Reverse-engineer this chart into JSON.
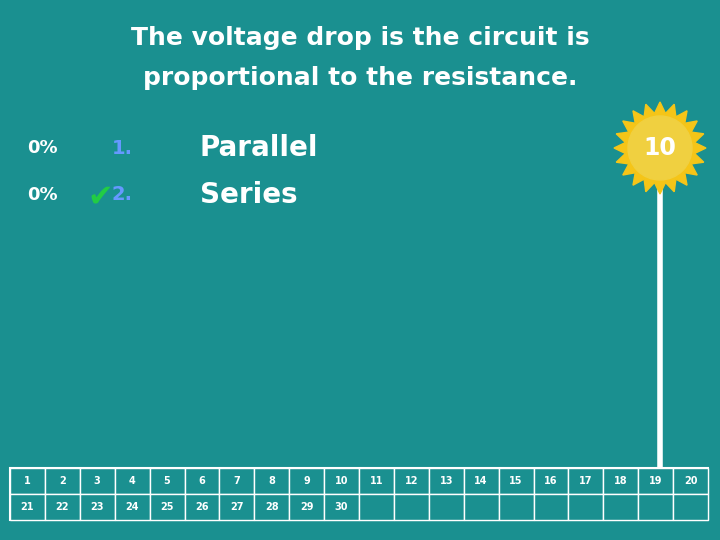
{
  "title_line1": "The voltage drop is the circuit is",
  "title_line2": "proportional to the resistance.",
  "bg_color": "#1a9090",
  "text_color": "#ffffff",
  "options": [
    {
      "number": "1.",
      "text": "Parallel",
      "has_check": false
    },
    {
      "number": "2.",
      "text": "Series",
      "has_check": true
    }
  ],
  "pct_label": "0%",
  "badge_number": "10",
  "badge_color_outer": "#f5c518",
  "badge_color_inner": "#f0d040",
  "stem_color": "#ffffff",
  "grid_rows": 2,
  "grid_cols": 20,
  "grid_filled_row1": 20,
  "grid_filled_row2": 10,
  "grid_color_filled": "#1a9090",
  "grid_border_color": "#ffffff",
  "check_color": "#22cc44",
  "number_color": "#6699ff"
}
